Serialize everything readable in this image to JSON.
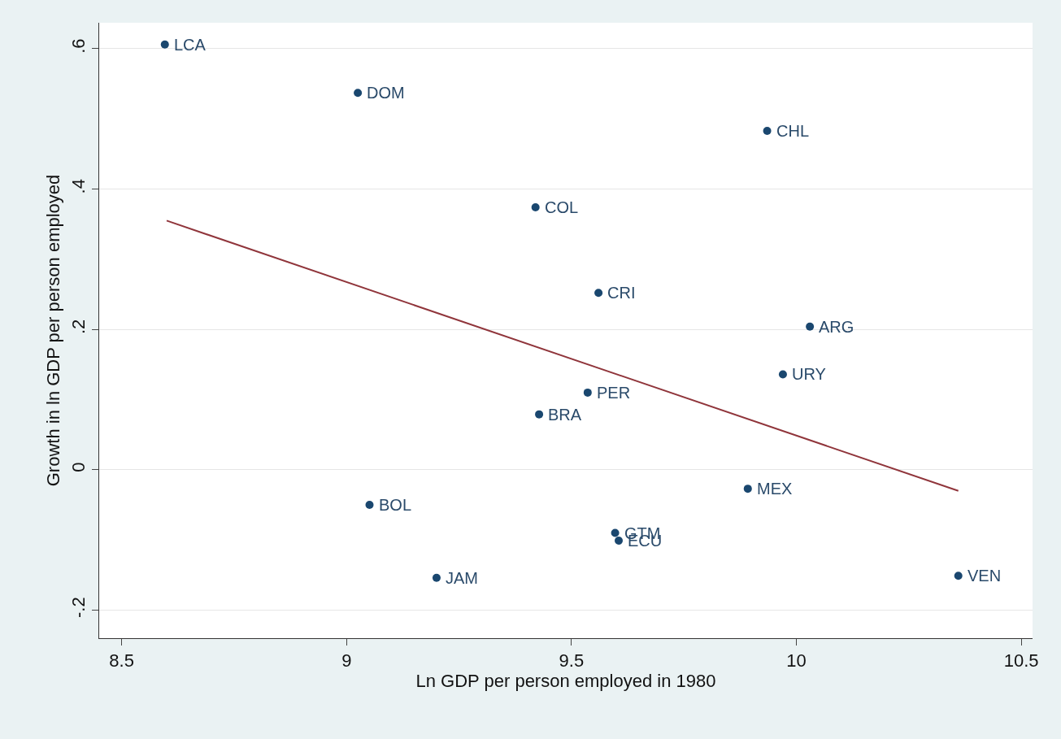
{
  "chart_data": {
    "type": "scatter",
    "xlabel": "Ln GDP per person employed in 1980",
    "ylabel": "Growth in ln GDP per person employed",
    "xlim": [
      8.45,
      10.525
    ],
    "ylim": [
      -0.24,
      0.637
    ],
    "xticks": [
      8.5,
      9,
      9.5,
      10,
      10.5
    ],
    "yticks": [
      {
        "value": -0.2,
        "label": "-.2"
      },
      0,
      {
        "value": 0.2,
        "label": ".2"
      },
      {
        "value": 0.4,
        "label": ".4"
      },
      {
        "value": 0.6,
        "label": ".6"
      }
    ],
    "grid": "y",
    "marker": "circle",
    "series": [
      {
        "color": "#1a476f",
        "x": [
          8.596,
          9.025,
          9.935,
          9.42,
          9.56,
          10.03,
          9.97,
          9.536,
          9.428,
          9.892,
          9.051,
          9.597,
          9.605,
          9.2,
          10.36
        ],
        "values": [
          0.606,
          0.537,
          0.483,
          0.374,
          0.252,
          0.204,
          0.136,
          0.11,
          0.079,
          -0.027,
          -0.05,
          -0.09,
          -0.101,
          -0.154,
          -0.151
        ]
      },
      {
        "type": "line",
        "color": "#90353b",
        "marker": "none",
        "x": [
          8.6,
          10.36
        ],
        "values": [
          0.355,
          -0.03
        ]
      }
    ],
    "annotations": [
      {
        "text": "LCA",
        "x": 8.596,
        "y": 0.606
      },
      {
        "text": "DOM",
        "x": 9.025,
        "y": 0.537
      },
      {
        "text": "CHL",
        "x": 9.935,
        "y": 0.483
      },
      {
        "text": "COL",
        "x": 9.42,
        "y": 0.374
      },
      {
        "text": "CRI",
        "x": 9.56,
        "y": 0.252
      },
      {
        "text": "ARG",
        "x": 10.03,
        "y": 0.204
      },
      {
        "text": "URY",
        "x": 9.97,
        "y": 0.136
      },
      {
        "text": "PER",
        "x": 9.536,
        "y": 0.11
      },
      {
        "text": "BRA",
        "x": 9.428,
        "y": 0.079
      },
      {
        "text": "MEX",
        "x": 9.892,
        "y": -0.027
      },
      {
        "text": "BOL",
        "x": 9.051,
        "y": -0.05
      },
      {
        "text": "GTM",
        "x": 9.597,
        "y": -0.09
      },
      {
        "text": "ECU",
        "x": 9.605,
        "y": -0.101
      },
      {
        "text": "JAM",
        "x": 9.2,
        "y": -0.154
      },
      {
        "text": "VEN",
        "x": 10.36,
        "y": -0.151
      }
    ]
  }
}
